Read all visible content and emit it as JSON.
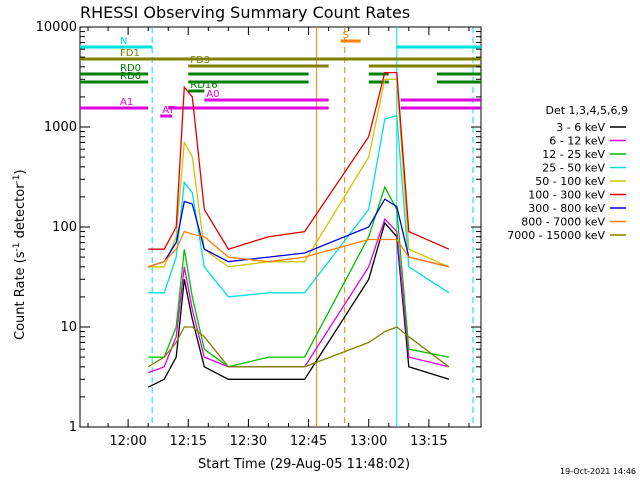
{
  "chart_data": {
    "type": "line",
    "title": "RHESSI Observing Summary Count Rates",
    "xlabel": "Start Time (29-Aug-05 11:48:02)",
    "ylabel": "Count Rate (s^-1 detector^-1)",
    "ylabel_parts": {
      "main": "Count Rate (s",
      "sup1": "-1",
      "mid": " detector",
      "sup2": "-1",
      "end": ")"
    },
    "yscale": "log",
    "xlim": [
      "11:48",
      "13:28"
    ],
    "ylim": [
      1,
      10000
    ],
    "x_ticks": [
      "12:00",
      "12:15",
      "12:30",
      "12:45",
      "13:00",
      "13:15"
    ],
    "y_ticks": [
      "1",
      "10",
      "100",
      "1000",
      "10000"
    ],
    "legend_title": "Det 1,3,4,5,6,9",
    "legend_position": "right",
    "series": [
      {
        "name": "3 - 6 keV",
        "color": "#000000",
        "times": [
          "12:05",
          "12:09",
          "12:12",
          "12:14",
          "12:16",
          "12:19",
          "12:25",
          "12:35",
          "12:44",
          "13:00",
          "13:04",
          "13:07",
          "13:10",
          "13:20"
        ],
        "values": [
          2.5,
          3,
          5,
          30,
          12,
          4,
          3,
          3,
          3,
          30,
          110,
          80,
          4,
          3
        ]
      },
      {
        "name": "6 - 12 keV",
        "color": "#e000e0",
        "times": [
          "12:05",
          "12:09",
          "12:12",
          "12:14",
          "12:16",
          "12:19",
          "12:25",
          "12:35",
          "12:44",
          "13:00",
          "13:04",
          "13:07",
          "13:10",
          "13:20"
        ],
        "values": [
          3.5,
          4,
          8,
          40,
          15,
          5,
          4,
          4,
          4,
          40,
          120,
          90,
          5,
          4
        ]
      },
      {
        "name": "12 - 25 keV",
        "color": "#00c000",
        "times": [
          "12:05",
          "12:09",
          "12:12",
          "12:14",
          "12:16",
          "12:19",
          "12:25",
          "12:35",
          "12:44",
          "13:00",
          "13:04",
          "13:07",
          "13:10",
          "13:20"
        ],
        "values": [
          5,
          5,
          10,
          60,
          20,
          6,
          4,
          5,
          5,
          80,
          250,
          150,
          6,
          5
        ]
      },
      {
        "name": "25 - 50 keV",
        "color": "#00e0e0",
        "times": [
          "12:05",
          "12:09",
          "12:12",
          "12:14",
          "12:16",
          "12:19",
          "12:25",
          "12:35",
          "12:44",
          "13:00",
          "13:04",
          "13:07",
          "13:10",
          "13:20"
        ],
        "values": [
          22,
          22,
          50,
          280,
          220,
          40,
          20,
          22,
          22,
          150,
          1200,
          1300,
          40,
          22
        ]
      },
      {
        "name": "50 - 100 keV",
        "color": "#d4c400",
        "times": [
          "12:05",
          "12:09",
          "12:12",
          "12:14",
          "12:16",
          "12:19",
          "12:25",
          "12:35",
          "12:44",
          "13:00",
          "13:04",
          "13:07",
          "13:10",
          "13:20"
        ],
        "values": [
          40,
          40,
          80,
          700,
          500,
          60,
          40,
          45,
          45,
          500,
          3000,
          3000,
          60,
          40
        ]
      },
      {
        "name": "100 - 300 keV",
        "color": "#e00000",
        "times": [
          "12:05",
          "12:09",
          "12:12",
          "12:14",
          "12:16",
          "12:19",
          "12:25",
          "12:35",
          "12:44",
          "13:00",
          "13:04",
          "13:07",
          "13:10",
          "13:20"
        ],
        "values": [
          60,
          60,
          100,
          2500,
          2000,
          150,
          60,
          80,
          90,
          800,
          3500,
          3500,
          90,
          60
        ]
      },
      {
        "name": "300 - 800 keV",
        "color": "#0000e0",
        "times": [
          "12:05",
          "12:09",
          "12:12",
          "12:14",
          "12:16",
          "12:19",
          "12:25",
          "12:35",
          "12:44",
          "13:00",
          "13:04",
          "13:07",
          "13:10",
          "13:20"
        ],
        "values": [
          40,
          45,
          70,
          180,
          170,
          60,
          45,
          50,
          55,
          100,
          190,
          160,
          50,
          40
        ]
      },
      {
        "name": "800 - 7000 keV",
        "color": "#ff7f00",
        "times": [
          "12:05",
          "12:09",
          "12:12",
          "12:14",
          "12:16",
          "12:19",
          "12:25",
          "12:35",
          "12:44",
          "13:00",
          "13:04",
          "13:07",
          "13:10",
          "13:20"
        ],
        "values": [
          40,
          45,
          60,
          90,
          85,
          80,
          50,
          45,
          50,
          75,
          75,
          75,
          50,
          40
        ]
      },
      {
        "name": "7000 - 15000 keV",
        "color": "#808000",
        "times": [
          "12:05",
          "12:09",
          "12:12",
          "12:14",
          "12:16",
          "12:19",
          "12:25",
          "12:35",
          "12:44",
          "13:00",
          "13:04",
          "13:07",
          "13:10",
          "13:20"
        ],
        "values": [
          4,
          5,
          7,
          10,
          10,
          8,
          4,
          4,
          4,
          7,
          9,
          10,
          8,
          4
        ]
      }
    ],
    "flags": [
      {
        "label": "FD1",
        "color": "#808000",
        "intervals": [
          [
            "11:48",
            "13:28"
          ]
        ]
      },
      {
        "label": "FD3",
        "color": "#808000",
        "intervals": [
          [
            "12:15",
            "12:50"
          ],
          [
            "13:00",
            "13:28"
          ]
        ]
      },
      {
        "label": "RD0",
        "color": "#008000",
        "intervals": [
          [
            "11:48",
            "12:05"
          ],
          [
            "12:15",
            "12:45"
          ],
          [
            "13:00",
            "13:05"
          ],
          [
            "13:17",
            "13:28"
          ]
        ]
      },
      {
        "label": "RD6",
        "color": "#008000",
        "intervals": [
          [
            "11:48",
            "12:05"
          ],
          [
            "12:15",
            "12:45"
          ],
          [
            "13:00",
            "13:05"
          ],
          [
            "13:17",
            "13:28"
          ]
        ]
      },
      {
        "label": "RD16",
        "color": "#008000",
        "intervals": [
          [
            "12:15",
            "12:19"
          ]
        ]
      },
      {
        "label": "A1",
        "color": "#e000e0",
        "intervals": [
          [
            "11:48",
            "12:05"
          ],
          [
            "12:10",
            "12:50"
          ],
          [
            "13:08",
            "13:28"
          ]
        ]
      },
      {
        "label": "A0",
        "color": "#e000e0",
        "intervals": [
          [
            "12:19",
            "12:50"
          ],
          [
            "13:08",
            "13:28"
          ]
        ]
      },
      {
        "label": "AT",
        "color": "#e000e0",
        "intervals": [
          [
            "12:08",
            "12:11"
          ]
        ]
      },
      {
        "label": "N",
        "color": "#00e0e0",
        "intervals": [
          [
            "11:48",
            "12:06"
          ],
          [
            "13:07",
            "13:28"
          ]
        ]
      },
      {
        "label": "S",
        "color": "#ff7f00",
        "intervals": [
          [
            "12:53",
            "12:58"
          ]
        ]
      }
    ],
    "markers": [
      {
        "time": "12:06",
        "color": "#00e0e0",
        "style": "dashed"
      },
      {
        "time": "12:47",
        "color": "#ff7f00",
        "style": "solid"
      },
      {
        "time": "12:54",
        "color": "#ff7f00",
        "style": "dashed"
      },
      {
        "time": "13:07",
        "color": "#00e0e0",
        "style": "solid"
      },
      {
        "time": "13:26",
        "color": "#00e0e0",
        "style": "dashed"
      }
    ]
  },
  "footer": {
    "timestamp": "19-Oct-2021 14:46"
  }
}
